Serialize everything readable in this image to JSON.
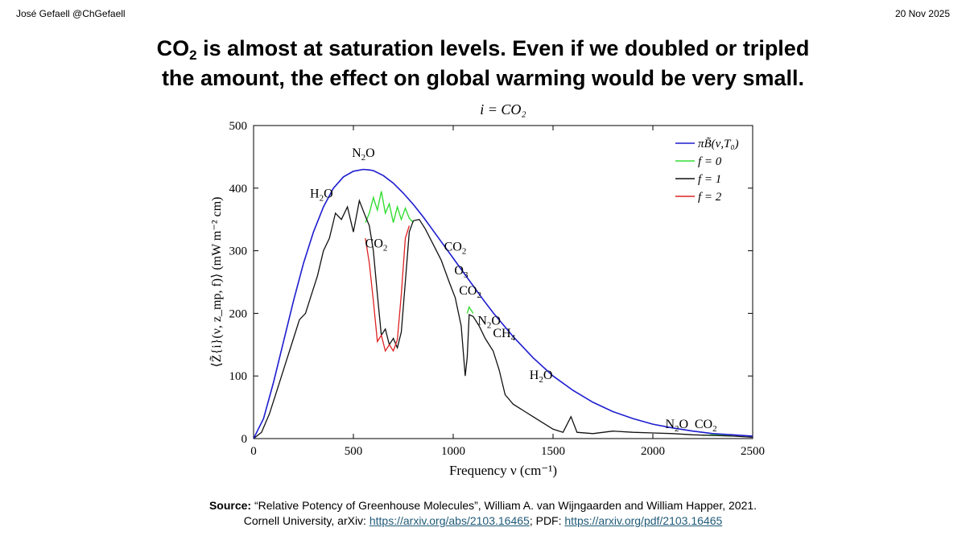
{
  "header": {
    "author": "José Gefaell @ChGefaell",
    "date": "20 Nov 2025"
  },
  "headline": {
    "part1": "CO",
    "sub": "2",
    "part2": " is almost at saturation levels. Even if we doubled or tripled",
    "line2": "the amount, the effect on global warming would be very small."
  },
  "chart_data": {
    "type": "line",
    "title": "i =  CO₂",
    "xlabel": "Frequency ν (cm⁻¹)",
    "ylabel": "⟨Z̃{i}(ν, z_mp, f)⟩ (mW m⁻² cm)",
    "xlim": [
      0,
      2500
    ],
    "ylim": [
      0,
      500
    ],
    "xticks": [
      0,
      500,
      1000,
      1500,
      2000,
      2500
    ],
    "yticks": [
      0,
      100,
      200,
      300,
      400,
      500
    ],
    "legend_position": "top-right",
    "legend": [
      "πB̃(ν,T₀)",
      "f = 0",
      "f = 1",
      "f = 2"
    ],
    "series": [
      {
        "name": "πB̃(ν,T₀)",
        "color": "#1c1ccf",
        "x": [
          0,
          50,
          100,
          150,
          200,
          250,
          300,
          350,
          400,
          450,
          500,
          550,
          580,
          600,
          650,
          700,
          750,
          800,
          850,
          900,
          950,
          1000,
          1050,
          1100,
          1150,
          1200,
          1300,
          1400,
          1500,
          1600,
          1700,
          1800,
          1900,
          2000,
          2100,
          2200,
          2300,
          2400,
          2500
        ],
        "values": [
          0,
          32,
          90,
          155,
          220,
          280,
          330,
          370,
          400,
          418,
          427,
          430,
          429,
          428,
          420,
          408,
          392,
          374,
          354,
          332,
          310,
          288,
          266,
          244,
          222,
          201,
          163,
          129,
          100,
          77,
          58,
          43,
          32,
          23,
          17,
          12,
          8,
          6,
          4
        ]
      },
      {
        "name": "f = 0",
        "color": "#33dd33",
        "x": [
          560,
          580,
          600,
          620,
          640,
          660,
          680,
          700,
          720,
          740,
          760,
          780,
          800,
          1070,
          1080,
          1090,
          1100,
          2250,
          2300,
          2350,
          2400
        ],
        "values": [
          345,
          360,
          385,
          365,
          395,
          360,
          375,
          345,
          370,
          350,
          368,
          352,
          345,
          200,
          210,
          205,
          200,
          5,
          6,
          5,
          4
        ]
      },
      {
        "name": "f = 1",
        "color": "#111111",
        "x": [
          0,
          40,
          80,
          120,
          160,
          200,
          230,
          260,
          290,
          320,
          350,
          380,
          410,
          440,
          470,
          500,
          530,
          560,
          580,
          600,
          620,
          640,
          660,
          680,
          700,
          720,
          740,
          760,
          780,
          800,
          830,
          860,
          900,
          940,
          980,
          1010,
          1040,
          1060,
          1070,
          1080,
          1100,
          1130,
          1160,
          1200,
          1230,
          1260,
          1300,
          1350,
          1400,
          1450,
          1500,
          1550,
          1590,
          1620,
          1700,
          1800,
          1900,
          2000,
          2100,
          2200,
          2300,
          2400,
          2500
        ],
        "values": [
          0,
          10,
          40,
          80,
          120,
          160,
          190,
          200,
          230,
          260,
          300,
          320,
          360,
          350,
          370,
          330,
          380,
          355,
          340,
          300,
          230,
          165,
          175,
          150,
          160,
          145,
          170,
          250,
          330,
          348,
          350,
          335,
          310,
          285,
          250,
          225,
          180,
          100,
          130,
          198,
          195,
          180,
          160,
          140,
          110,
          70,
          55,
          45,
          35,
          25,
          15,
          10,
          35,
          10,
          8,
          12,
          10,
          9,
          8,
          6,
          5,
          4,
          2
        ]
      },
      {
        "name": "f = 2",
        "color": "#dd2222",
        "x": [
          560,
          580,
          600,
          620,
          640,
          660,
          680,
          700,
          720,
          740,
          760,
          780
        ],
        "values": [
          320,
          280,
          220,
          155,
          165,
          140,
          150,
          140,
          158,
          230,
          320,
          340
        ]
      }
    ],
    "annotations": [
      {
        "text": "N",
        "sub": "2",
        "tail": "O",
        "x": 550,
        "y": 450
      },
      {
        "text": "H",
        "sub": "2",
        "tail": "O",
        "x": 340,
        "y": 385
      },
      {
        "text": "CO",
        "sub": "2",
        "tail": "",
        "x": 615,
        "y": 305
      },
      {
        "text": "CO",
        "sub": "2",
        "tail": "",
        "x": 1010,
        "y": 300
      },
      {
        "text": "O",
        "sub": "3",
        "tail": "",
        "x": 1040,
        "y": 262
      },
      {
        "text": "CO",
        "sub": "2",
        "tail": "",
        "x": 1085,
        "y": 230
      },
      {
        "text": "N",
        "sub": "2",
        "tail": "O",
        "x": 1180,
        "y": 182
      },
      {
        "text": "CH",
        "sub": "4",
        "tail": "",
        "x": 1255,
        "y": 162
      },
      {
        "text": "H",
        "sub": "2",
        "tail": "O",
        "x": 1440,
        "y": 95
      },
      {
        "text": "N",
        "sub": "2",
        "tail": "O",
        "x": 2120,
        "y": 17
      },
      {
        "text": "CO",
        "sub": "2",
        "tail": "",
        "x": 2265,
        "y": 17
      }
    ]
  },
  "source": {
    "label": "Source:",
    "citation": " “Relative Potency of Greenhouse Molecules”, William A. van Wijngaarden and William Happer, 2021.",
    "line2_prefix": "Cornell University, arXiv:  ",
    "abs_link": "https://arxiv.org/abs/2103.16465",
    "pdf_prefix": "; PDF: ",
    "pdf_link": "https://arxiv.org/pdf/2103.16465"
  }
}
